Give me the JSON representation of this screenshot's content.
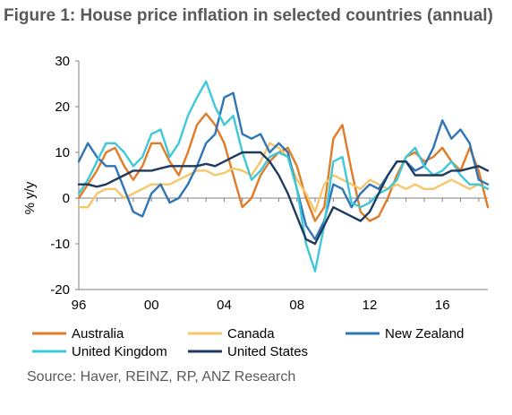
{
  "figure": {
    "title": "Figure 1: House price inflation in selected countries (annual)",
    "source": "Source: Haver, REINZ, RP, ANZ Research"
  },
  "chart_data": {
    "type": "line",
    "ylabel": "% y/y",
    "ylim": [
      -20,
      30
    ],
    "yticks": [
      -20,
      -10,
      0,
      10,
      20,
      30
    ],
    "xlim": [
      1996,
      2018.5
    ],
    "xticks": [
      {
        "value": 1996,
        "label": "96"
      },
      {
        "value": 2000,
        "label": "00"
      },
      {
        "value": 2004,
        "label": "04"
      },
      {
        "value": 2008,
        "label": "08"
      },
      {
        "value": 2012,
        "label": "12"
      },
      {
        "value": 2016,
        "label": "16"
      }
    ],
    "grid": false,
    "legend_position": "bottom",
    "series": [
      {
        "name": "Australia",
        "color": "#e07b27",
        "points": [
          [
            1996.0,
            0
          ],
          [
            1996.5,
            3
          ],
          [
            1997.0,
            6
          ],
          [
            1997.5,
            10
          ],
          [
            1998.0,
            11
          ],
          [
            1998.5,
            7
          ],
          [
            1999.0,
            4
          ],
          [
            1999.5,
            7
          ],
          [
            2000.0,
            12
          ],
          [
            2000.5,
            12
          ],
          [
            2001.0,
            8
          ],
          [
            2001.5,
            5
          ],
          [
            2002.0,
            10
          ],
          [
            2002.5,
            16
          ],
          [
            2003.0,
            18.5
          ],
          [
            2003.5,
            16
          ],
          [
            2004.0,
            12
          ],
          [
            2004.5,
            5
          ],
          [
            2005.0,
            -2
          ],
          [
            2005.5,
            0
          ],
          [
            2006.0,
            5
          ],
          [
            2006.5,
            8
          ],
          [
            2007.0,
            10
          ],
          [
            2007.5,
            11
          ],
          [
            2008.0,
            7
          ],
          [
            2008.5,
            0
          ],
          [
            2009.0,
            -5
          ],
          [
            2009.5,
            -2
          ],
          [
            2010.0,
            13
          ],
          [
            2010.5,
            16
          ],
          [
            2011.0,
            6
          ],
          [
            2011.5,
            -3
          ],
          [
            2012.0,
            -5
          ],
          [
            2012.5,
            -4
          ],
          [
            2013.0,
            0
          ],
          [
            2013.5,
            5
          ],
          [
            2014.0,
            9
          ],
          [
            2014.5,
            10
          ],
          [
            2015.0,
            8
          ],
          [
            2015.5,
            9
          ],
          [
            2016.0,
            11
          ],
          [
            2016.5,
            8
          ],
          [
            2017.0,
            6
          ],
          [
            2017.5,
            11
          ],
          [
            2018.0,
            6
          ],
          [
            2018.5,
            -2
          ]
        ]
      },
      {
        "name": "Canada",
        "color": "#f7c56a",
        "points": [
          [
            1996.0,
            -2
          ],
          [
            1996.5,
            -2
          ],
          [
            1997.0,
            1
          ],
          [
            1997.5,
            2
          ],
          [
            1998.0,
            2
          ],
          [
            1998.5,
            0
          ],
          [
            1999.0,
            1
          ],
          [
            1999.5,
            2
          ],
          [
            2000.0,
            3
          ],
          [
            2000.5,
            3
          ],
          [
            2001.0,
            3
          ],
          [
            2001.5,
            4
          ],
          [
            2002.0,
            5
          ],
          [
            2002.5,
            6
          ],
          [
            2003.0,
            6
          ],
          [
            2003.5,
            5
          ],
          [
            2004.0,
            5.5
          ],
          [
            2004.5,
            6.5
          ],
          [
            2005.0,
            6
          ],
          [
            2005.5,
            5
          ],
          [
            2006.0,
            8
          ],
          [
            2006.5,
            12
          ],
          [
            2007.0,
            11
          ],
          [
            2007.5,
            9
          ],
          [
            2008.0,
            4
          ],
          [
            2008.5,
            1
          ],
          [
            2009.0,
            -3
          ],
          [
            2009.5,
            3
          ],
          [
            2010.0,
            5
          ],
          [
            2010.5,
            4
          ],
          [
            2011.0,
            3
          ],
          [
            2011.5,
            2
          ],
          [
            2012.0,
            4
          ],
          [
            2012.5,
            3
          ],
          [
            2013.0,
            2
          ],
          [
            2013.5,
            3
          ],
          [
            2014.0,
            2
          ],
          [
            2014.5,
            3
          ],
          [
            2015.0,
            2
          ],
          [
            2015.5,
            2
          ],
          [
            2016.0,
            3
          ],
          [
            2016.5,
            4
          ],
          [
            2017.0,
            3
          ],
          [
            2017.5,
            2
          ],
          [
            2018.0,
            3
          ],
          [
            2018.5,
            2
          ]
        ]
      },
      {
        "name": "New Zealand",
        "color": "#2e75b6",
        "points": [
          [
            1996.0,
            8
          ],
          [
            1996.5,
            12
          ],
          [
            1997.0,
            9
          ],
          [
            1997.5,
            7
          ],
          [
            1998.0,
            7
          ],
          [
            1998.5,
            2
          ],
          [
            1999.0,
            -3
          ],
          [
            1999.5,
            -4
          ],
          [
            2000.0,
            1
          ],
          [
            2000.5,
            3
          ],
          [
            2001.0,
            -1
          ],
          [
            2001.5,
            0
          ],
          [
            2002.0,
            3
          ],
          [
            2002.5,
            7
          ],
          [
            2003.0,
            12
          ],
          [
            2003.5,
            14
          ],
          [
            2004.0,
            22
          ],
          [
            2004.5,
            23
          ],
          [
            2005.0,
            14
          ],
          [
            2005.5,
            13
          ],
          [
            2006.0,
            14
          ],
          [
            2006.5,
            10
          ],
          [
            2007.0,
            12
          ],
          [
            2007.5,
            10
          ],
          [
            2008.0,
            2
          ],
          [
            2008.5,
            -6
          ],
          [
            2009.0,
            -9
          ],
          [
            2009.5,
            -5
          ],
          [
            2010.0,
            3
          ],
          [
            2010.5,
            2
          ],
          [
            2011.0,
            -2
          ],
          [
            2011.5,
            1
          ],
          [
            2012.0,
            3
          ],
          [
            2012.5,
            2
          ],
          [
            2013.0,
            5
          ],
          [
            2013.5,
            8
          ],
          [
            2014.0,
            8
          ],
          [
            2014.5,
            6
          ],
          [
            2015.0,
            7
          ],
          [
            2015.5,
            11
          ],
          [
            2016.0,
            17
          ],
          [
            2016.5,
            13
          ],
          [
            2017.0,
            15
          ],
          [
            2017.5,
            12
          ],
          [
            2018.0,
            4
          ],
          [
            2018.5,
            3
          ]
        ]
      },
      {
        "name": "United Kingdom",
        "color": "#3ec8d8",
        "points": [
          [
            1996.0,
            1
          ],
          [
            1996.5,
            4
          ],
          [
            1997.0,
            8
          ],
          [
            1997.5,
            12
          ],
          [
            1998.0,
            12
          ],
          [
            1998.5,
            10
          ],
          [
            1999.0,
            7
          ],
          [
            1999.5,
            9
          ],
          [
            2000.0,
            14
          ],
          [
            2000.5,
            15
          ],
          [
            2001.0,
            9
          ],
          [
            2001.5,
            12
          ],
          [
            2002.0,
            18
          ],
          [
            2002.5,
            22
          ],
          [
            2003.0,
            25.5
          ],
          [
            2003.5,
            20
          ],
          [
            2004.0,
            16
          ],
          [
            2004.5,
            18
          ],
          [
            2005.0,
            10
          ],
          [
            2005.5,
            4
          ],
          [
            2006.0,
            6
          ],
          [
            2006.5,
            9
          ],
          [
            2007.0,
            10
          ],
          [
            2007.5,
            9
          ],
          [
            2008.0,
            2
          ],
          [
            2008.5,
            -10
          ],
          [
            2009.0,
            -16
          ],
          [
            2009.5,
            -6
          ],
          [
            2010.0,
            8
          ],
          [
            2010.5,
            9
          ],
          [
            2011.0,
            -1
          ],
          [
            2011.5,
            -2
          ],
          [
            2012.0,
            -1
          ],
          [
            2012.5,
            1
          ],
          [
            2013.0,
            2
          ],
          [
            2013.5,
            4
          ],
          [
            2014.0,
            9
          ],
          [
            2014.5,
            11
          ],
          [
            2015.0,
            7
          ],
          [
            2015.5,
            5
          ],
          [
            2016.0,
            6
          ],
          [
            2016.5,
            8
          ],
          [
            2017.0,
            5
          ],
          [
            2017.5,
            3
          ],
          [
            2018.0,
            3
          ],
          [
            2018.5,
            2
          ]
        ]
      },
      {
        "name": "United States",
        "color": "#1f3a5f",
        "points": [
          [
            1996.0,
            3
          ],
          [
            1996.5,
            3
          ],
          [
            1997.0,
            2.5
          ],
          [
            1997.5,
            3
          ],
          [
            1998.0,
            4
          ],
          [
            1998.5,
            5
          ],
          [
            1999.0,
            6
          ],
          [
            1999.5,
            6
          ],
          [
            2000.0,
            6
          ],
          [
            2000.5,
            6.5
          ],
          [
            2001.0,
            7
          ],
          [
            2001.5,
            7
          ],
          [
            2002.0,
            7
          ],
          [
            2002.5,
            7
          ],
          [
            2003.0,
            7.5
          ],
          [
            2003.5,
            7
          ],
          [
            2004.0,
            8
          ],
          [
            2004.5,
            9
          ],
          [
            2005.0,
            10
          ],
          [
            2005.5,
            10
          ],
          [
            2006.0,
            10
          ],
          [
            2006.5,
            8
          ],
          [
            2007.0,
            5
          ],
          [
            2007.5,
            1
          ],
          [
            2008.0,
            -4
          ],
          [
            2008.5,
            -9
          ],
          [
            2009.0,
            -10
          ],
          [
            2009.5,
            -6
          ],
          [
            2010.0,
            -2
          ],
          [
            2010.5,
            -3
          ],
          [
            2011.0,
            -4
          ],
          [
            2011.5,
            -5
          ],
          [
            2012.0,
            -3
          ],
          [
            2012.5,
            1
          ],
          [
            2013.0,
            5
          ],
          [
            2013.5,
            8
          ],
          [
            2014.0,
            8
          ],
          [
            2014.5,
            5
          ],
          [
            2015.0,
            5
          ],
          [
            2015.5,
            5
          ],
          [
            2016.0,
            5
          ],
          [
            2016.5,
            6
          ],
          [
            2017.0,
            6
          ],
          [
            2017.5,
            6.5
          ],
          [
            2018.0,
            7
          ],
          [
            2018.5,
            6
          ]
        ]
      }
    ]
  }
}
